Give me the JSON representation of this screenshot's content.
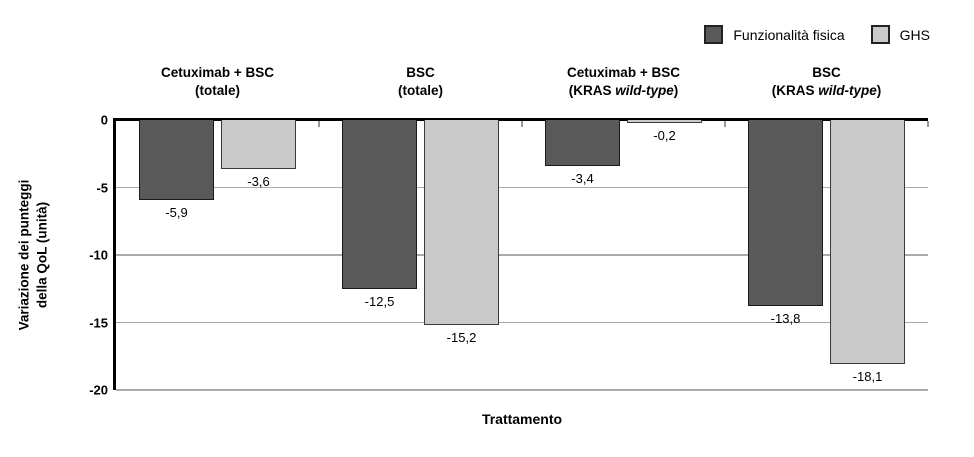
{
  "chart_data": {
    "type": "bar",
    "title": "",
    "xlabel": "Trattamento",
    "ylabel_line1": "Variazione dei punteggi",
    "ylabel_line2": "della QoL (unità)",
    "ylim": [
      -20,
      0
    ],
    "grid": true,
    "legend_position": "top-right",
    "yticks": [
      {
        "value": 0,
        "label": "0"
      },
      {
        "value": -5,
        "label": "-5"
      },
      {
        "value": -10,
        "label": "-10"
      },
      {
        "value": -15,
        "label": "-15"
      },
      {
        "value": -20,
        "label": "-20"
      }
    ],
    "categories": [
      {
        "line1": "Cetuximab + BSC",
        "line2_pre": "(totale)",
        "line2_italic": "",
        "line2_post": ""
      },
      {
        "line1": "BSC",
        "line2_pre": "(totale)",
        "line2_italic": "",
        "line2_post": ""
      },
      {
        "line1": "Cetuximab + BSC",
        "line2_pre": "(KRAS ",
        "line2_italic": "wild-type",
        "line2_post": ")"
      },
      {
        "line1": "BSC",
        "line2_pre": "(KRAS ",
        "line2_italic": "wild-type",
        "line2_post": ")"
      }
    ],
    "series": [
      {
        "name": "Funzionalità fisica",
        "color": "#595959",
        "border_color": "#1a1a1a",
        "values": [
          -5.9,
          -12.5,
          -3.4,
          -13.8
        ],
        "labels": [
          "-5,9",
          "-12,5",
          "-3,4",
          "-13,8"
        ]
      },
      {
        "name": "GHS",
        "color": "#c9c9c9",
        "border_color": "#3a3a3a",
        "values": [
          -3.6,
          -15.2,
          -0.2,
          -18.1
        ],
        "labels": [
          "-3,6",
          "-15,2",
          "-0,2",
          "-18,1"
        ]
      }
    ],
    "colors": {
      "gridline": "#aaaaaa",
      "axis": "#000000",
      "text": "#000000"
    }
  }
}
